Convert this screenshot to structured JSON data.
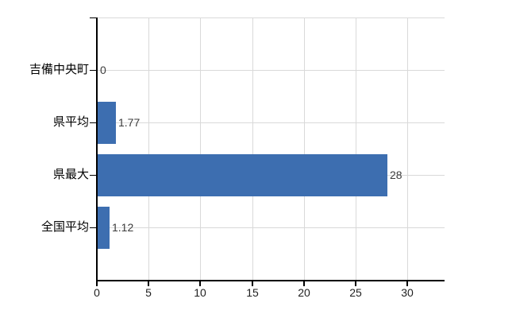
{
  "chart_data": {
    "type": "bar",
    "orientation": "horizontal",
    "title": "",
    "xlabel": "",
    "ylabel": "",
    "categories": [
      "吉備中央町",
      "県平均",
      "県最大",
      "全国平均"
    ],
    "values": [
      0,
      1.77,
      28,
      1.12
    ],
    "value_labels": [
      "0",
      "1.77",
      "28",
      "1.12"
    ],
    "xticks": [
      0,
      5,
      10,
      15,
      20,
      25,
      30
    ],
    "xtick_labels": [
      "0",
      "5",
      "10",
      "15",
      "20",
      "25",
      "30"
    ],
    "xlim": [
      0,
      33.6
    ],
    "grid": "on",
    "legend": "none",
    "colors": {
      "bar": "#3d6eb0",
      "grid": "#d9d9d9",
      "axis": "#000000",
      "category_label": "#000000",
      "value_label": "#3c3c3c",
      "tick_label": "#1f1f1f",
      "background": "#ffffff"
    }
  }
}
